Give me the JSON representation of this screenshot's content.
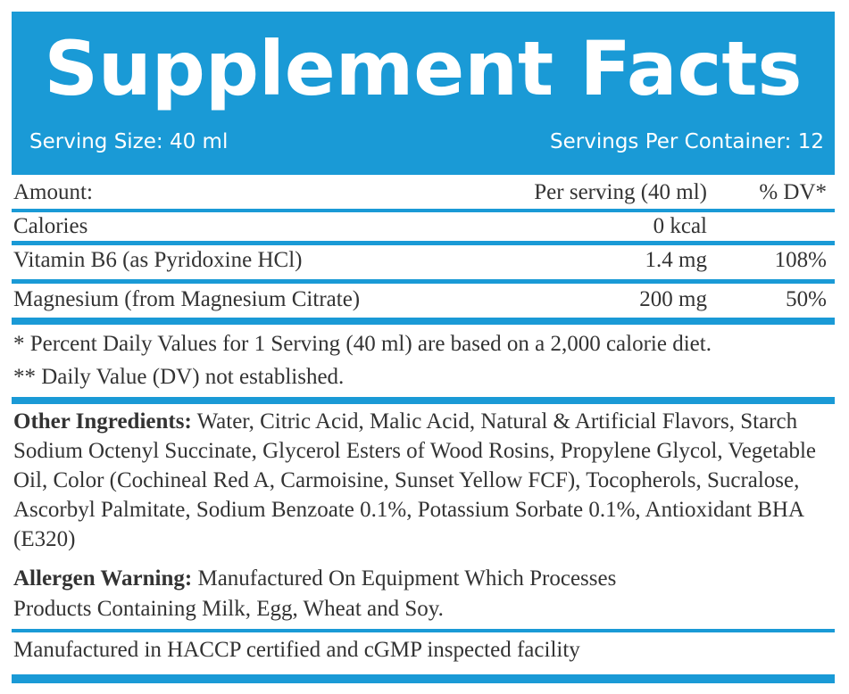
{
  "header": {
    "title": "Supplement Facts",
    "serving_size": "Serving Size: 40 ml",
    "servings_per_container": "Servings Per Container: 12"
  },
  "table": {
    "head": {
      "name": "Amount:",
      "amount": "Per serving (40 ml)",
      "dv": "% DV*"
    },
    "rows": [
      {
        "name": "Calories",
        "amount": "0 kcal",
        "dv": ""
      },
      {
        "name": "Vitamin B6 (as Pyridoxine HCl)",
        "amount": "1.4 mg",
        "dv": "108%"
      },
      {
        "name": "Magnesium (from Magnesium Citrate)",
        "amount": "200 mg",
        "dv": "50%"
      }
    ]
  },
  "footnotes": [
    "* Percent Daily Values for 1 Serving (40 ml) are based on a 2,000 calorie diet.",
    "** Daily Value (DV) not established."
  ],
  "other_ingredients": {
    "label": "Other Ingredients:",
    "text": " Water, Citric Acid, Malic Acid, Natural & Artificial Flavors, Starch Sodium Octenyl Succinate, Glycerol Esters of Wood Rosins, Propylene Glycol, Vegetable Oil, Color (Cochineal Red A, Carmoisine, Sunset Yellow FCF), Tocopherols, Sucralose, Ascorbyl Palmitate, Sodium Benzoate 0.1%, Potassium Sorbate 0.1%, Antioxidant BHA (E320)"
  },
  "allergen": {
    "label": "Allergen Warning:",
    "line1": " Manufactured On Equipment Which Processes",
    "line2": "Products Containing Milk, Egg, Wheat and Soy."
  },
  "facility": "Manufactured in HACCP certified and cGMP inspected facility",
  "colors": {
    "accent": "#1a9ad6",
    "text": "#333333",
    "background": "#ffffff"
  }
}
